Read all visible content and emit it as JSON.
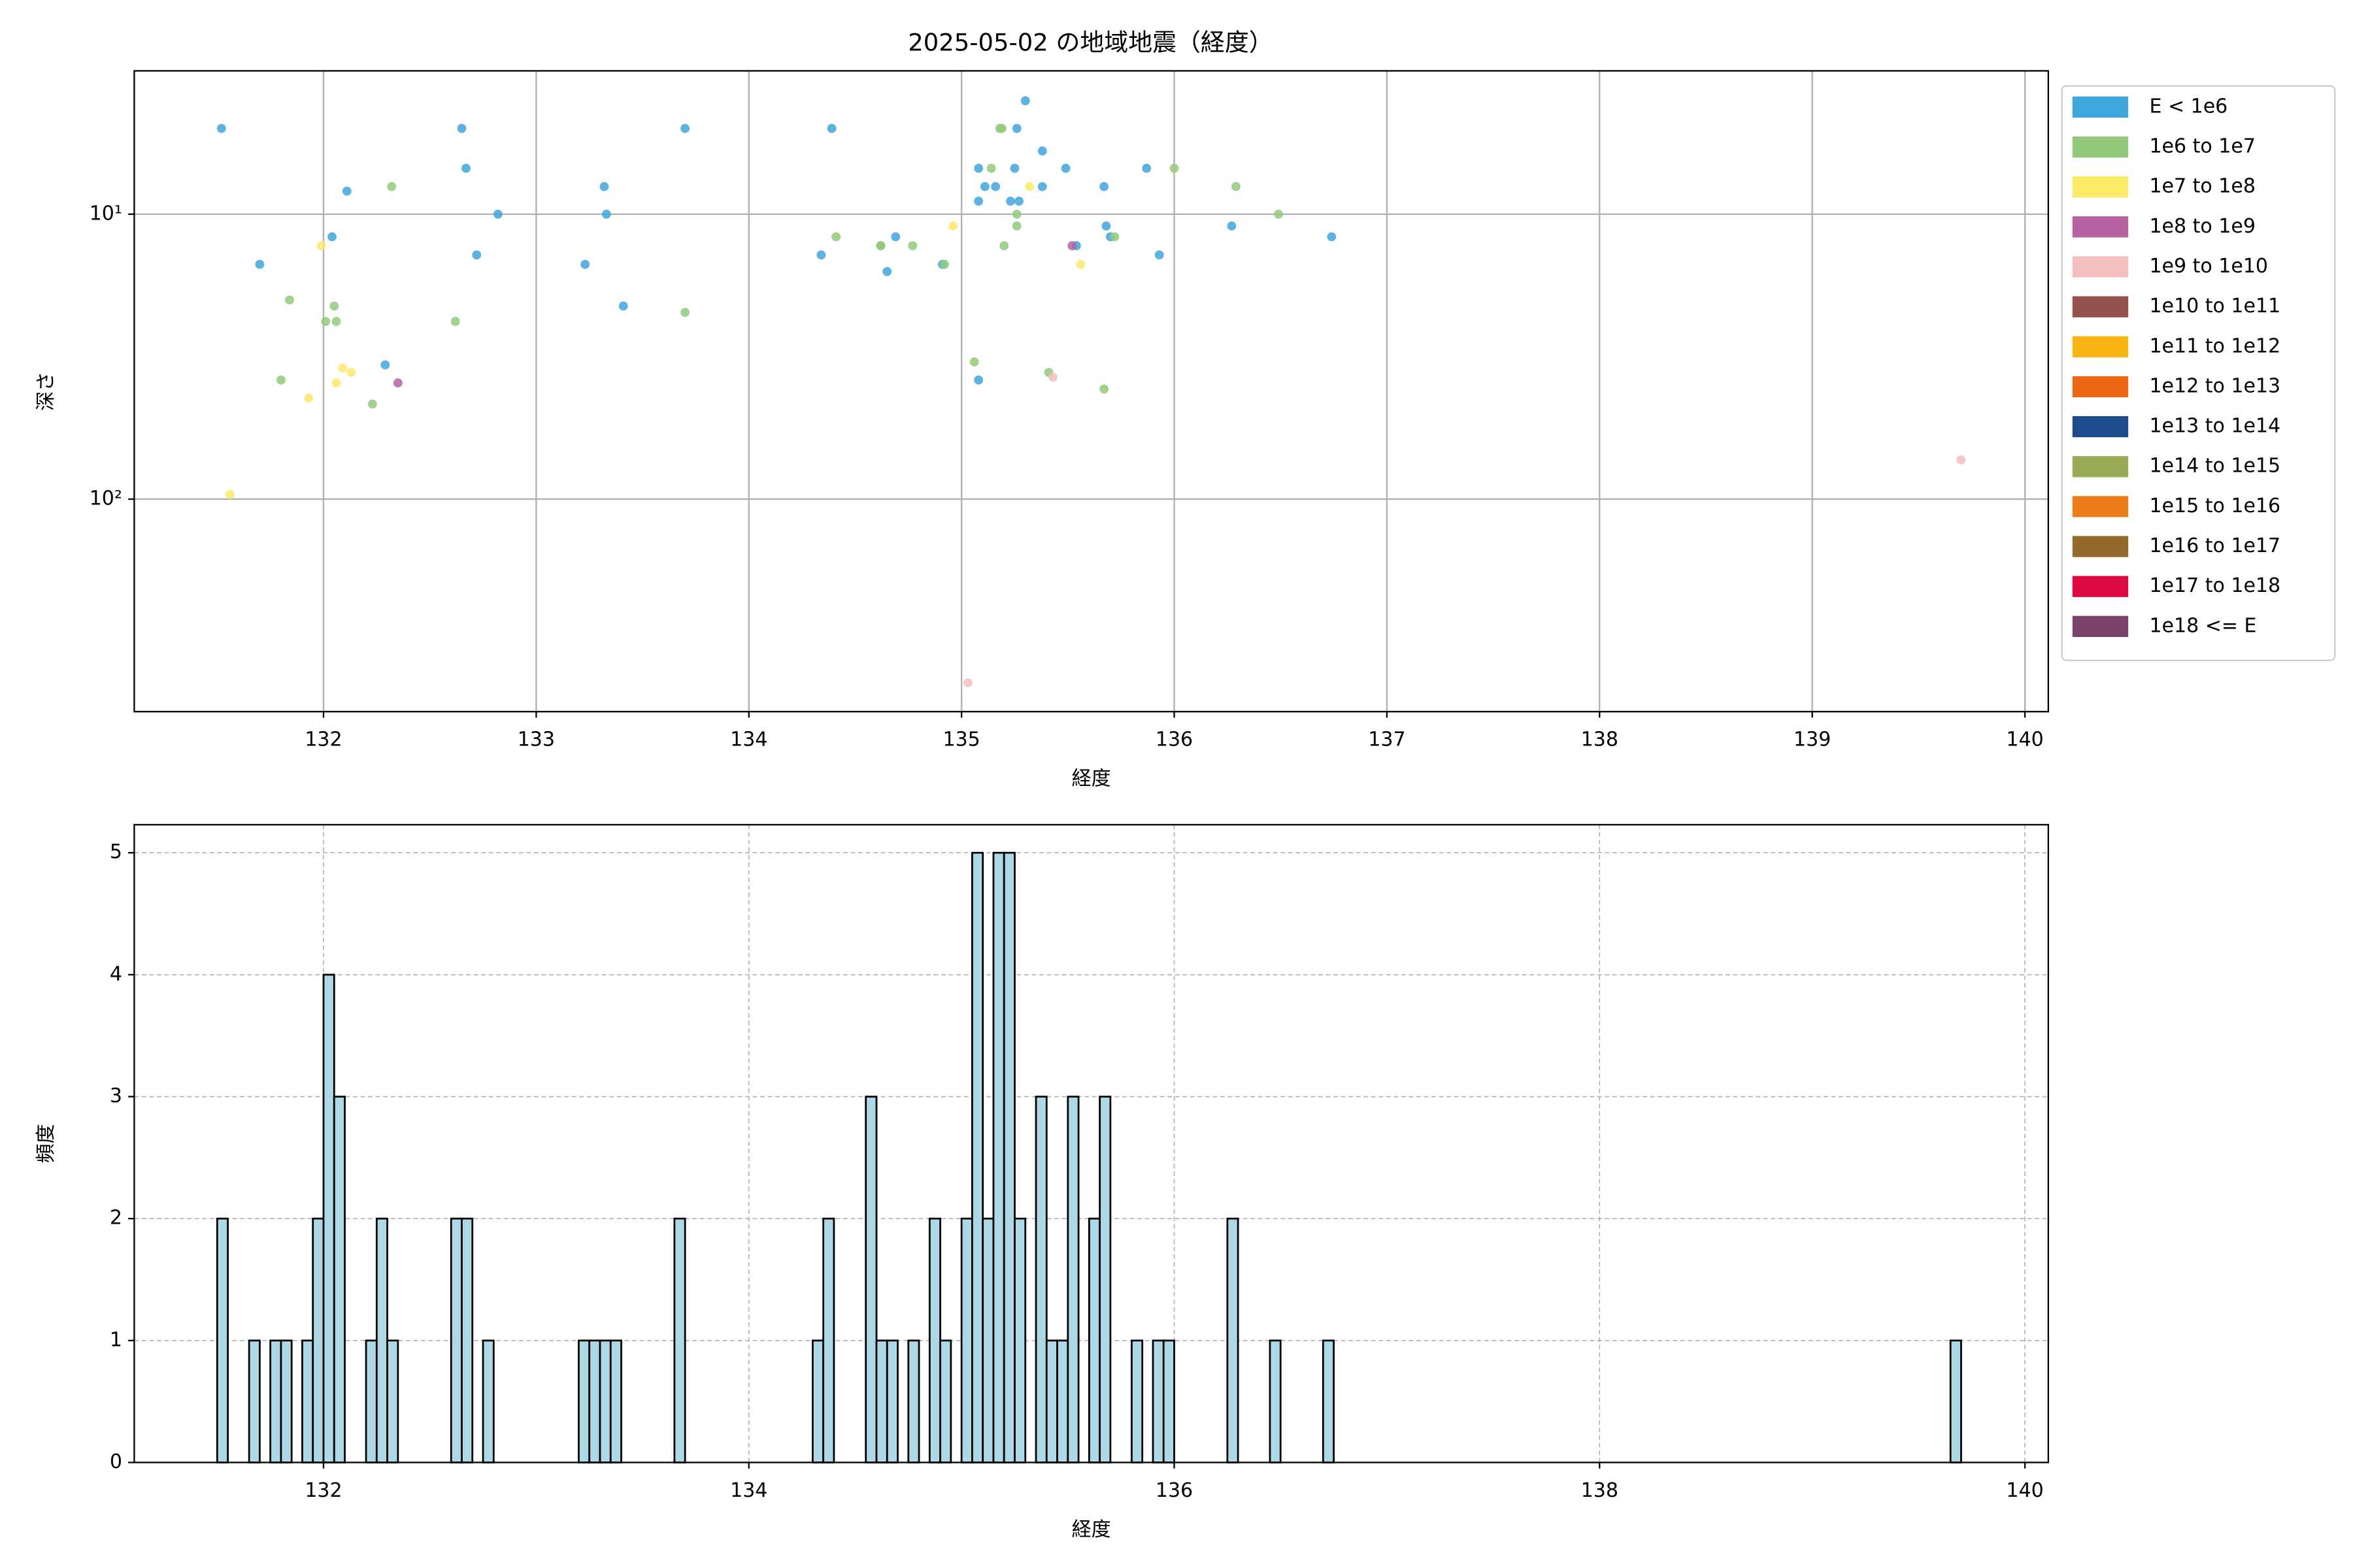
{
  "chart_data": [
    {
      "type": "scatter",
      "title": "2025-05-02 の地域地震（経度）",
      "xlabel": "経度",
      "ylabel": "深さ",
      "xlim": [
        131.11,
        140.11
      ],
      "xticks": [
        132,
        133,
        134,
        135,
        136,
        137,
        138,
        139,
        140
      ],
      "ylim": [
        3.14,
        557
      ],
      "yscale": "log",
      "y_inverted": true,
      "yticks": [
        {
          "value": 10,
          "label": "10¹"
        },
        {
          "value": 100,
          "label": "10²"
        }
      ],
      "grid": true,
      "legend": "outside right",
      "series": [
        {
          "name": "E < 1e6",
          "color": "#3fa6dc",
          "x": [
            131.52,
            131.7,
            132.11,
            132.04,
            132.29,
            132.65,
            132.67,
            132.72,
            132.82,
            133.23,
            133.32,
            133.33,
            133.41,
            133.7,
            134.34,
            134.39,
            134.65,
            134.69,
            134.91,
            135.08,
            135.08,
            135.08,
            135.11,
            135.16,
            135.23,
            135.25,
            135.26,
            135.27,
            135.3,
            135.38,
            135.38,
            135.49,
            135.54,
            135.67,
            135.68,
            135.7,
            135.87,
            135.93,
            136.27,
            136.74
          ],
          "y": [
            5,
            15,
            8.3,
            12,
            33.8,
            5,
            6.9,
            13.9,
            10,
            15,
            8,
            10,
            21,
            5,
            13.9,
            5,
            15.9,
            12,
            15,
            6.9,
            9,
            38.2,
            8,
            8,
            9,
            6.9,
            5,
            9,
            4,
            6,
            8,
            6.9,
            12.9,
            8,
            11,
            12,
            6.9,
            13.9,
            11,
            12
          ]
        },
        {
          "name": "1e6 to 1e7",
          "color": "#93c97a",
          "x": [
            131.84,
            131.8,
            132.01,
            132.05,
            132.06,
            132.23,
            132.32,
            132.62,
            133.7,
            134.41,
            134.62,
            134.62,
            134.77,
            134.92,
            135.06,
            135.14,
            135.18,
            135.19,
            135.2,
            135.26,
            135.26,
            135.41,
            135.67,
            135.72,
            136,
            136.29,
            136.49
          ],
          "y": [
            20,
            38.2,
            23.8,
            21,
            23.8,
            46.4,
            8,
            23.8,
            22.1,
            12,
            12.9,
            12.9,
            12.9,
            15,
            33,
            6.9,
            5,
            5,
            12.9,
            10,
            11,
            35.9,
            41.1,
            12,
            6.9,
            8,
            10
          ]
        },
        {
          "name": "1e7 to 1e8",
          "color": "#fde968",
          "x": [
            131.56,
            131.93,
            131.99,
            132.06,
            132.09,
            132.13,
            134.96,
            135.32,
            135.56
          ],
          "y": [
            96.3,
            44.2,
            12.9,
            39.1,
            34.7,
            35.9,
            11,
            8,
            15
          ]
        },
        {
          "name": "1e8 to 1e9",
          "color": "#b862a3",
          "x": [
            132.35,
            135.52
          ],
          "y": [
            39.1,
            12.9
          ]
        },
        {
          "name": "1e9 to 1e10",
          "color": "#f3bfbc",
          "x": [
            135.43,
            135.03,
            139.7
          ],
          "y": [
            37.3,
            441,
            72.8
          ]
        },
        {
          "name": "1e10 to 1e11",
          "color": "#94514d",
          "x": [],
          "y": []
        },
        {
          "name": "1e11 to 1e12",
          "color": "#f9b514",
          "x": [],
          "y": []
        },
        {
          "name": "1e12 to 1e13",
          "color": "#ea6613",
          "x": [],
          "y": []
        },
        {
          "name": "1e13 to 1e14",
          "color": "#1e4b8e",
          "x": [],
          "y": []
        },
        {
          "name": "1e14 to 1e15",
          "color": "#9aab55",
          "x": [],
          "y": []
        },
        {
          "name": "1e15 to 1e16",
          "color": "#ed7d18",
          "x": [],
          "y": []
        },
        {
          "name": "1e16 to 1e17",
          "color": "#93692c",
          "x": [],
          "y": []
        },
        {
          "name": "1e17 to 1e18",
          "color": "#dc0a41",
          "x": [],
          "y": []
        },
        {
          "name": "1e18 <= E",
          "color": "#7b436b",
          "x": [],
          "y": []
        }
      ]
    },
    {
      "type": "histogram",
      "xlabel": "経度",
      "ylabel": "頻度",
      "color": "#add8e6",
      "xlim": [
        131.11,
        140.11
      ],
      "xticks": [
        132,
        134,
        136,
        138,
        140
      ],
      "ylim": [
        0,
        5.23
      ],
      "yticks": [
        0,
        1,
        2,
        3,
        4,
        5
      ],
      "grid": true,
      "bins": [
        131.5,
        131.55,
        131.6,
        131.65,
        131.7,
        131.75,
        131.8,
        131.85,
        131.9,
        131.95,
        132,
        132.05,
        132.1,
        132.15,
        132.2,
        132.25,
        132.3,
        132.35,
        132.4,
        132.45,
        132.5,
        132.55,
        132.6,
        132.65,
        132.7,
        132.75,
        132.8,
        132.85,
        132.9,
        132.95,
        133,
        133.05,
        133.1,
        133.15,
        133.2,
        133.25,
        133.3,
        133.35,
        133.4,
        133.45,
        133.5,
        133.55,
        133.6,
        133.65,
        133.7,
        133.75,
        133.8,
        133.85,
        133.9,
        133.95,
        134,
        134.05,
        134.1,
        134.15,
        134.2,
        134.25,
        134.3,
        134.35,
        134.4,
        134.45,
        134.5,
        134.55,
        134.6,
        134.65,
        134.7,
        134.75,
        134.8,
        134.85,
        134.9,
        134.95,
        135,
        135.05,
        135.1,
        135.15,
        135.2,
        135.25,
        135.3,
        135.35,
        135.4,
        135.45,
        135.5,
        135.55,
        135.6,
        135.65,
        135.7,
        135.75,
        135.8,
        135.85,
        135.9,
        135.95,
        136,
        136.05,
        136.1,
        136.15,
        136.2,
        136.25,
        136.3,
        136.35,
        136.4,
        136.45,
        136.5,
        136.55,
        136.6,
        136.65,
        136.7,
        136.75,
        136.8,
        136.85,
        136.9,
        136.95,
        137,
        137.05,
        137.1,
        137.15,
        137.2,
        137.25,
        137.3,
        137.35,
        137.4,
        137.45,
        137.5,
        137.55,
        137.6,
        137.65,
        137.7,
        137.75,
        137.8,
        137.85,
        137.9,
        137.95,
        138,
        138.05,
        138.1,
        138.15,
        138.2,
        138.25,
        138.3,
        138.35,
        138.4,
        138.45,
        138.5,
        138.55,
        138.6,
        138.65,
        138.7,
        138.75,
        138.8,
        138.85,
        138.9,
        138.95,
        139,
        139.05,
        139.1,
        139.15,
        139.2,
        139.25,
        139.3,
        139.35,
        139.4,
        139.45,
        139.5,
        139.55,
        139.6,
        139.65,
        139.7
      ],
      "values": [
        2,
        0,
        0,
        1,
        0,
        1,
        1,
        0,
        1,
        2,
        4,
        3,
        0,
        0,
        1,
        2,
        1,
        0,
        0,
        0,
        0,
        0,
        2,
        2,
        0,
        1,
        0,
        0,
        0,
        0,
        0,
        0,
        0,
        0,
        1,
        1,
        1,
        1,
        0,
        0,
        0,
        0,
        0,
        2,
        0,
        0,
        0,
        0,
        0,
        0,
        0,
        0,
        0,
        0,
        0,
        0,
        1,
        2,
        0,
        0,
        0,
        3,
        1,
        1,
        0,
        1,
        0,
        2,
        1,
        0,
        2,
        5,
        2,
        5,
        5,
        2,
        0,
        3,
        1,
        1,
        3,
        0,
        2,
        3,
        0,
        0,
        1,
        0,
        1,
        1,
        0,
        0,
        0,
        0,
        0,
        2,
        0,
        0,
        0,
        1,
        0,
        0,
        0,
        0,
        1,
        0,
        0,
        0,
        0,
        0,
        0,
        0,
        0,
        0,
        0,
        0,
        0,
        0,
        0,
        0,
        0,
        0,
        0,
        0,
        0,
        0,
        0,
        0,
        0,
        0,
        0,
        0,
        0,
        0,
        0,
        0,
        0,
        0,
        0,
        0,
        0,
        0,
        0,
        0,
        0,
        0,
        0,
        0,
        0,
        0,
        0,
        0,
        0,
        0,
        0,
        0,
        0,
        0,
        0,
        0,
        0,
        0,
        0,
        1
      ]
    }
  ]
}
